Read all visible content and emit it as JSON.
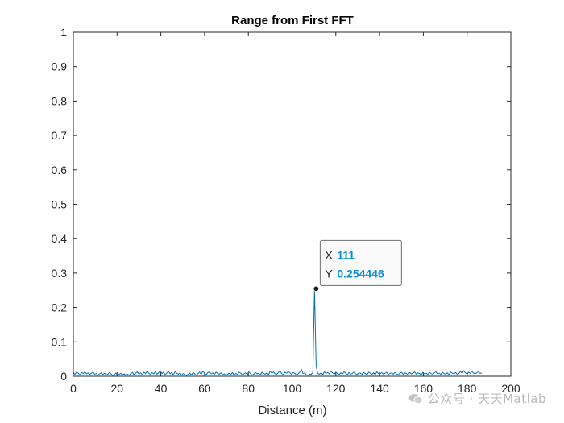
{
  "chart_data": {
    "type": "line",
    "title": "Range from First FFT",
    "xlabel": "Distance (m)",
    "ylabel": "",
    "xlim": [
      0,
      200
    ],
    "ylim": [
      0,
      1
    ],
    "xticks": [
      0,
      20,
      40,
      60,
      80,
      100,
      120,
      140,
      160,
      180,
      200
    ],
    "yticks": [
      0,
      0.1,
      0.2,
      0.3,
      0.4,
      0.5,
      0.6,
      0.7,
      0.8,
      0.9,
      1
    ],
    "grid": false,
    "series_color": "#0072bd",
    "series": [
      {
        "values_y": [
          0.01,
          0.006,
          0.012,
          0.009,
          0.004,
          0.011,
          0.008,
          0.013,
          0.007,
          0.01,
          0.005,
          0.009,
          0.012,
          0.006,
          0.008,
          0.003,
          0.007,
          0.01,
          0.005,
          0.009,
          0.004,
          0.006,
          0.011,
          0.007,
          0.002,
          0.005,
          0.009,
          0.003,
          0.006,
          0.008,
          0.004,
          0.007,
          0.002,
          0.006,
          0.003,
          0.008,
          0.011,
          0.005,
          0.009,
          0.013,
          0.006,
          0.01,
          0.004,
          0.012,
          0.008,
          0.015,
          0.009,
          0.005,
          0.011,
          0.007,
          0.014,
          0.006,
          0.01,
          0.016,
          0.008,
          0.012,
          0.005,
          0.009,
          0.015,
          0.007,
          0.011,
          0.004,
          0.013,
          0.009,
          0.006,
          0.01,
          0.003,
          0.008,
          0.005,
          0.002,
          0.006,
          0.009,
          0.004,
          0.011,
          0.007,
          0.003,
          0.008,
          0.012,
          0.006,
          0.015,
          0.009,
          0.004,
          0.011,
          0.013,
          0.007,
          0.01,
          0.005,
          0.012,
          0.008,
          0.006,
          0.01,
          0.004,
          0.007,
          0.002,
          0.006,
          0.009,
          0.005,
          0.011,
          0.003,
          0.008,
          0.006,
          0.012,
          0.009,
          0.004,
          0.007,
          0.01,
          0.005,
          0.013,
          0.008,
          0.003,
          0.006,
          0.011,
          0.007,
          0.009,
          0.004,
          0.012,
          0.008,
          0.006,
          0.01,
          0.005,
          0.015,
          0.009,
          0.013,
          0.007,
          0.006,
          0.011,
          0.016,
          0.008,
          0.005,
          0.012,
          0.009,
          0.014,
          0.01,
          0.006,
          0.011,
          0.008,
          0.004,
          0.007,
          0.012,
          0.02,
          0.008,
          0.01,
          0.004,
          0.003,
          0.006,
          0.006,
          0.011,
          0.254,
          0.03,
          0.008,
          0.006,
          0.01,
          0.005,
          0.013,
          0.009,
          0.011,
          0.007,
          0.015,
          0.01,
          0.006,
          0.012,
          0.008,
          0.005,
          0.01,
          0.007,
          0.013,
          0.009,
          0.004,
          0.011,
          0.006,
          0.008,
          0.012,
          0.007,
          0.005,
          0.01,
          0.009,
          0.006,
          0.011,
          0.008,
          0.004,
          0.012,
          0.009,
          0.006,
          0.01,
          0.005,
          0.013,
          0.008,
          0.007,
          0.011,
          0.006,
          0.009,
          0.012,
          0.005,
          0.008,
          0.01,
          0.006,
          0.011,
          0.007,
          0.004,
          0.009,
          0.012,
          0.006,
          0.01,
          0.008,
          0.005,
          0.011,
          0.007,
          0.009,
          0.013,
          0.006,
          0.01,
          0.008,
          0.004,
          0.011,
          0.007,
          0.009,
          0.005,
          0.012,
          0.008,
          0.006,
          0.01,
          0.013,
          0.007,
          0.009,
          0.005,
          0.011,
          0.008,
          0.006,
          0.01,
          0.004,
          0.012,
          0.009,
          0.007,
          0.011,
          0.005,
          0.008,
          0.014,
          0.009,
          0.016,
          0.01,
          0.006,
          0.012,
          0.008,
          0.015,
          0.009,
          0.007,
          0.011,
          0.013,
          0.008,
          0.01
        ]
      }
    ],
    "x_start": 0,
    "x_step": 0.75,
    "datatip": {
      "x": 111,
      "y": 0.254446,
      "x_key": "X",
      "y_key": "Y",
      "x_text": "111",
      "y_text": "0.254446"
    }
  },
  "watermark": {
    "text": "公众号 · 天天Matlab",
    "icon": "wechat-icon"
  }
}
